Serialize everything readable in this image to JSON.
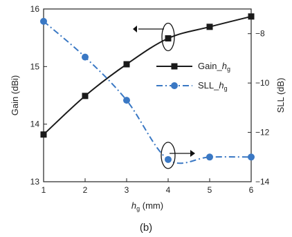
{
  "chart_data": {
    "type": "line",
    "x": [
      1,
      2,
      3,
      4,
      5,
      6
    ],
    "xlabel": "h",
    "xlabel_sub": "g",
    "xlabel_unit": "(mm)",
    "xlim": [
      1,
      6
    ],
    "x_ticks": [
      "1",
      "2",
      "3",
      "4",
      "5",
      "6"
    ],
    "ylabel_left": "Gain (dBi)",
    "ylim_left": [
      13,
      16
    ],
    "y_ticks_left": [
      "13",
      "14",
      "15",
      "16"
    ],
    "ylabel_right": "SLL (dB)",
    "ylim_right": [
      -14,
      -7
    ],
    "y_ticks_right": [
      "−14",
      "−12",
      "−10",
      "−8"
    ],
    "series": [
      {
        "name": "Gain_",
        "name_sub": "g",
        "name_italic": "h",
        "axis": "left",
        "values": [
          13.82,
          14.49,
          15.04,
          15.49,
          15.69,
          15.87
        ],
        "color": "#1a1a1a",
        "marker": "square",
        "line_style": "solid"
      },
      {
        "name": "SLL_",
        "name_sub": "g",
        "name_italic": "h",
        "axis": "right",
        "values": [
          -7.5,
          -8.95,
          -10.7,
          -13.1,
          -13.0,
          -13.0
        ],
        "color": "#3a78c4",
        "marker": "circle",
        "line_style": "dashdot"
      }
    ],
    "legend_position": "center-right",
    "grid": false,
    "annotations": [
      {
        "type": "ellipse-arrow",
        "target_series": "Gain",
        "x": 4,
        "points_to": "left-axis"
      },
      {
        "type": "ellipse-arrow",
        "target_series": "SLL",
        "x": 4,
        "points_to": "right-axis"
      }
    ]
  },
  "caption": "(b)"
}
